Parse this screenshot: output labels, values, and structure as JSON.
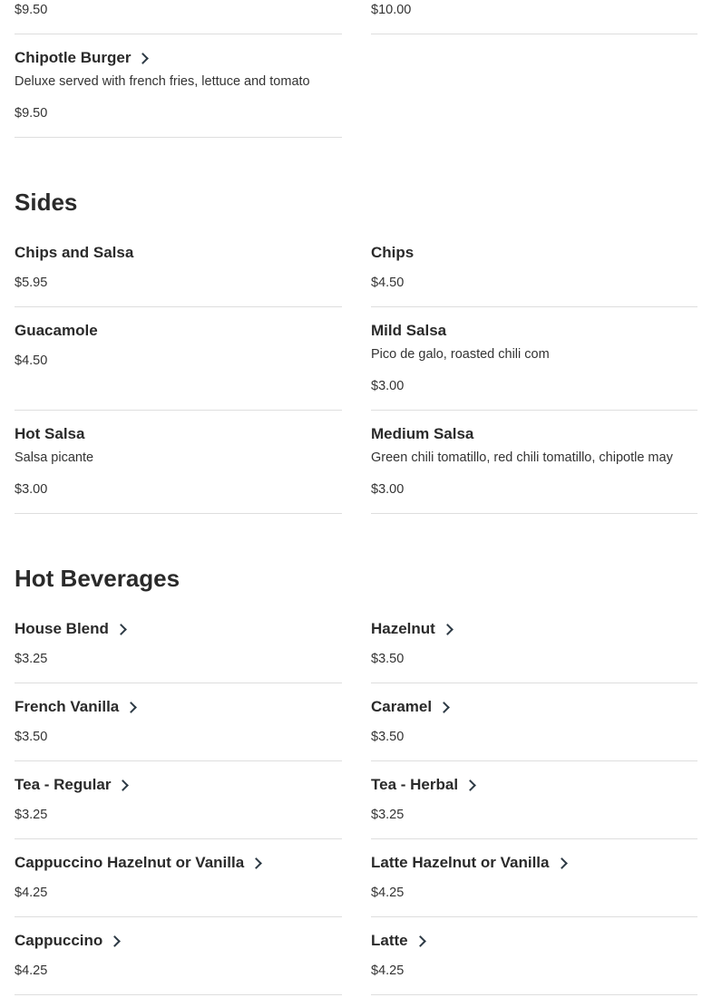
{
  "sections": [
    {
      "title": "",
      "items": [
        {
          "name": "",
          "price": "$9.50",
          "link": false
        },
        {
          "name": "",
          "price": "$10.00",
          "link": false
        },
        {
          "name": "Chipotle Burger",
          "description": "Deluxe served with french fries, lettuce and tomato",
          "price": "$9.50",
          "link": true
        }
      ]
    },
    {
      "title": "Sides",
      "items": [
        {
          "name": "Chips and Salsa",
          "price": "$5.95",
          "link": false
        },
        {
          "name": "Chips",
          "price": "$4.50",
          "link": false
        },
        {
          "name": "Guacamole",
          "price": "$4.50",
          "link": false
        },
        {
          "name": "Mild Salsa",
          "description": "Pico de galo, roasted chili com",
          "price": "$3.00",
          "link": false
        },
        {
          "name": "Hot Salsa",
          "description": "Salsa picante",
          "price": "$3.00",
          "link": false
        },
        {
          "name": "Medium Salsa",
          "description": "Green chili tomatillo, red chili tomatillo, chipotle may",
          "price": "$3.00",
          "link": false
        }
      ]
    },
    {
      "title": "Hot Beverages",
      "items": [
        {
          "name": "House Blend",
          "price": "$3.25",
          "link": true
        },
        {
          "name": "Hazelnut",
          "price": "$3.50",
          "link": true
        },
        {
          "name": "French Vanilla",
          "price": "$3.50",
          "link": true
        },
        {
          "name": "Caramel",
          "price": "$3.50",
          "link": true
        },
        {
          "name": "Tea - Regular",
          "price": "$3.25",
          "link": true
        },
        {
          "name": "Tea - Herbal",
          "price": "$3.25",
          "link": true
        },
        {
          "name": "Cappuccino Hazelnut or Vanilla",
          "price": "$4.25",
          "link": true
        },
        {
          "name": "Latte Hazelnut or Vanilla",
          "price": "$4.25",
          "link": true
        },
        {
          "name": "Cappuccino",
          "price": "$4.25",
          "link": true
        },
        {
          "name": "Latte",
          "price": "$4.25",
          "link": true
        }
      ]
    }
  ],
  "icons": {
    "item_link": "chevron-right-icon"
  },
  "colors": {
    "text": "#2a2a2a",
    "chevron": "#2d3a45",
    "divider": "#dedede"
  }
}
